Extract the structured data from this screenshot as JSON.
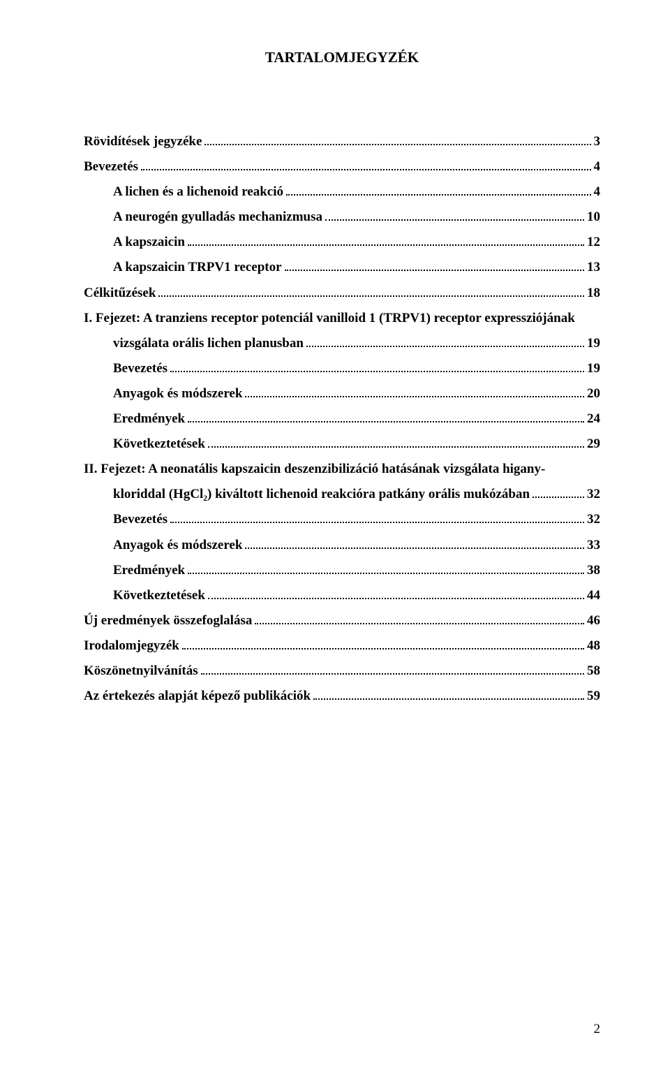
{
  "title": "TARTALOMJEGYZÉK",
  "entries": [
    {
      "label": "Rövidítések jegyzéke",
      "page": "3",
      "indent": false
    },
    {
      "label": "Bevezetés",
      "page": "4",
      "indent": false
    },
    {
      "label": "A lichen és a lichenoid reakció",
      "page": "4",
      "indent": true
    },
    {
      "label": "A neurogén gyulladás mechanizmusa",
      "page": "10",
      "indent": true
    },
    {
      "label": "A kapszaicin",
      "page": "12",
      "indent": true
    },
    {
      "label": "A kapszaicin TRPV1 receptor",
      "page": "13",
      "indent": true
    },
    {
      "label": "Célkitűzések",
      "page": "18",
      "indent": false
    }
  ],
  "multiline_a": {
    "line1": "I. Fejezet: A tranziens receptor potenciál vanilloid 1 (TRPV1) receptor expressziójának",
    "line2": "vizsgálata orális lichen planusban",
    "page": "19"
  },
  "entries_mid": [
    {
      "label": "Bevezetés",
      "page": "19",
      "indent": true
    },
    {
      "label": "Anyagok és módszerek",
      "page": "20",
      "indent": true
    },
    {
      "label": "Eredmények",
      "page": "24",
      "indent": true
    },
    {
      "label": "Következtetések",
      "page": "29",
      "indent": true
    }
  ],
  "multiline_b": {
    "line1": "II. Fejezet: A neonatális kapszaicin deszenzibilizáció hatásának vizsgálata higany-",
    "line2": "kloriddal (HgCl₂) kiváltott lichenoid reakcióra patkány orális mukózában",
    "page": "32"
  },
  "entries_tail": [
    {
      "label": "Bevezetés",
      "page": "32",
      "indent": true
    },
    {
      "label": "Anyagok és módszerek",
      "page": "33",
      "indent": true
    },
    {
      "label": "Eredmények",
      "page": "38",
      "indent": true
    },
    {
      "label": "Következtetések",
      "page": "44",
      "indent": true
    },
    {
      "label": "Új eredmények összefoglalása",
      "page": "46",
      "indent": false
    },
    {
      "label": "Irodalomjegyzék",
      "page": "48",
      "indent": false
    },
    {
      "label": "Köszönetnyilvánítás",
      "page": "58",
      "indent": false
    },
    {
      "label": "Az értekezés alapját képező publikációk",
      "page": "59",
      "indent": false
    }
  ],
  "page_number": "2"
}
